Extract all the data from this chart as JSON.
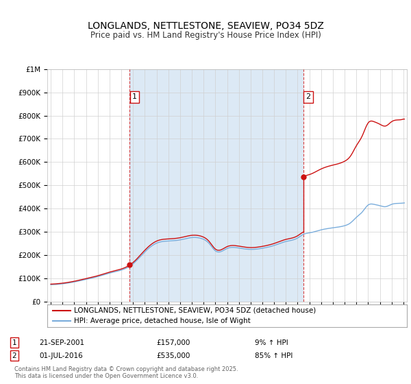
{
  "title": "LONGLANDS, NETTLESTONE, SEAVIEW, PO34 5DZ",
  "subtitle": "Price paid vs. HM Land Registry's House Price Index (HPI)",
  "title_fontsize": 10,
  "subtitle_fontsize": 8.5,
  "background_color": "#ffffff",
  "plot_bg_color": "#ffffff",
  "shade_color": "#dce9f5",
  "grid_color": "#d0d0d0",
  "red_color": "#cc1111",
  "blue_color": "#7aaddc",
  "annotation1": {
    "label": "1",
    "date_x": 2001.72,
    "price": 157000,
    "hpi_at_buy": 144000,
    "text": "21-SEP-2001",
    "amount": "£157,000",
    "pct": "9% ↑ HPI"
  },
  "annotation2": {
    "label": "2",
    "date_x": 2016.5,
    "price": 535000,
    "hpi_at_buy": 289000,
    "text": "01-JUL-2016",
    "amount": "£535,000",
    "pct": "85% ↑ HPI"
  },
  "legend_line1": "LONGLANDS, NETTLESTONE, SEAVIEW, PO34 5DZ (detached house)",
  "legend_line2": "HPI: Average price, detached house, Isle of Wight",
  "footer": "Contains HM Land Registry data © Crown copyright and database right 2025.\nThis data is licensed under the Open Government Licence v3.0.",
  "ylim": [
    0,
    1000000
  ],
  "xlim": [
    1994.7,
    2025.3
  ],
  "yticks": [
    0,
    100000,
    200000,
    300000,
    400000,
    500000,
    600000,
    700000,
    800000,
    900000,
    1000000
  ],
  "ytick_labels": [
    "£0",
    "£100K",
    "£200K",
    "£300K",
    "£400K",
    "£500K",
    "£600K",
    "£700K",
    "£800K",
    "£900K",
    "£1M"
  ]
}
